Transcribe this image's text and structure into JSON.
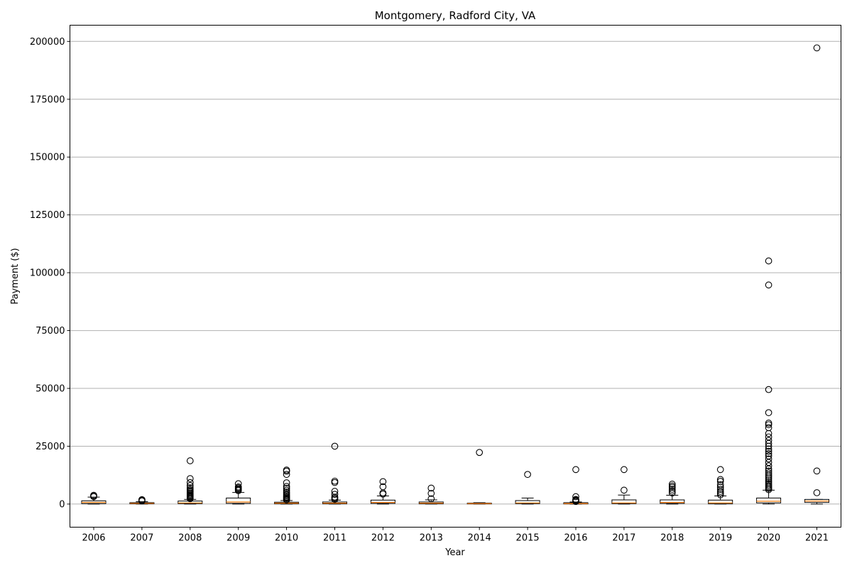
{
  "chart_data": {
    "type": "box",
    "title": "Montgomery, Radford City, VA",
    "xlabel": "Year",
    "ylabel": "Payment ($)",
    "ylim": [
      -10000,
      207000
    ],
    "yticks": [
      0,
      25000,
      50000,
      75000,
      100000,
      125000,
      150000,
      175000,
      200000
    ],
    "grid": "y",
    "colors": {
      "box": "#000000",
      "median": "#ff7f0e",
      "grid": "#b0b0b0",
      "flier": "#000000"
    },
    "categories": [
      "2006",
      "2007",
      "2008",
      "2009",
      "2010",
      "2011",
      "2012",
      "2013",
      "2014",
      "2015",
      "2016",
      "2017",
      "2018",
      "2019",
      "2020",
      "2021"
    ],
    "boxes": [
      {
        "year": "2006",
        "whisker_low": 0,
        "q1": 200,
        "median": 700,
        "q3": 1400,
        "whisker_high": 3000,
        "fliers": [
          3200,
          3600,
          3800
        ]
      },
      {
        "year": "2007",
        "whisker_low": 0,
        "q1": 100,
        "median": 300,
        "q3": 600,
        "whisker_high": 1000,
        "fliers": [
          1300,
          1600,
          1900
        ]
      },
      {
        "year": "2008",
        "whisker_low": 0,
        "q1": 200,
        "median": 500,
        "q3": 1300,
        "whisker_high": 2000,
        "fliers": [
          2300,
          2700,
          3100,
          3500,
          3900,
          4300,
          4800,
          5300,
          5800,
          6300,
          7000,
          8000,
          9300,
          11000,
          18700
        ]
      },
      {
        "year": "2009",
        "whisker_low": 0,
        "q1": 300,
        "median": 900,
        "q3": 2600,
        "whisker_high": 5000,
        "fliers": [
          5800,
          6200,
          6600,
          7000,
          7400,
          8800
        ]
      },
      {
        "year": "2010",
        "whisker_low": 0,
        "q1": 100,
        "median": 400,
        "q3": 800,
        "whisker_high": 1500,
        "fliers": [
          1800,
          2200,
          2600,
          3000,
          3500,
          4000,
          4600,
          5200,
          6000,
          6800,
          7600,
          9200,
          12800,
          14200,
          14700
        ]
      },
      {
        "year": "2011",
        "whisker_low": 0,
        "q1": 100,
        "median": 400,
        "q3": 900,
        "whisker_high": 1700,
        "fliers": [
          2000,
          2500,
          3000,
          4200,
          5500,
          9300,
          9900,
          25000
        ]
      },
      {
        "year": "2012",
        "whisker_low": 0,
        "q1": 300,
        "median": 700,
        "q3": 1700,
        "whisker_high": 3500,
        "fliers": [
          4300,
          4800,
          7500,
          9700
        ]
      },
      {
        "year": "2013",
        "whisker_low": 0,
        "q1": 100,
        "median": 400,
        "q3": 900,
        "whisker_high": 1800,
        "fliers": [
          2300,
          4600,
          6900
        ]
      },
      {
        "year": "2014",
        "whisker_low": 0,
        "q1": 50,
        "median": 200,
        "q3": 400,
        "whisker_high": 600,
        "fliers": [
          22300
        ]
      },
      {
        "year": "2015",
        "whisker_low": 0,
        "q1": 200,
        "median": 500,
        "q3": 1500,
        "whisker_high": 2600,
        "fliers": [
          12800
        ]
      },
      {
        "year": "2016",
        "whisker_low": 0,
        "q1": 50,
        "median": 200,
        "q3": 600,
        "whisker_high": 900,
        "fliers": [
          1100,
          1400,
          1700,
          2000,
          3200,
          14900
        ]
      },
      {
        "year": "2017",
        "whisker_low": 0,
        "q1": 200,
        "median": 500,
        "q3": 1800,
        "whisker_high": 3900,
        "fliers": [
          6000,
          14900
        ]
      },
      {
        "year": "2018",
        "whisker_low": 0,
        "q1": 300,
        "median": 700,
        "q3": 1800,
        "whisker_high": 3800,
        "fliers": [
          4800,
          5600,
          6400,
          7200,
          7800,
          8600
        ]
      },
      {
        "year": "2019",
        "whisker_low": 0,
        "q1": 100,
        "median": 500,
        "q3": 1700,
        "whisker_high": 3500,
        "fliers": [
          4000,
          4800,
          5500,
          6400,
          7300,
          8300,
          9800,
          10600,
          14900
        ]
      },
      {
        "year": "2020",
        "whisker_low": 0,
        "q1": 500,
        "median": 1200,
        "q3": 2600,
        "whisker_high": 6000,
        "fliers": [
          6200,
          6800,
          7400,
          8000,
          8700,
          9400,
          10100,
          10900,
          11700,
          12500,
          13400,
          14300,
          15200,
          16500,
          18000,
          19500,
          20800,
          21800,
          22800,
          23800,
          25000,
          26200,
          27500,
          29000,
          30500,
          33000,
          34300,
          35000,
          39500,
          49500,
          94700,
          105100
        ]
      },
      {
        "year": "2021",
        "whisker_low": 0,
        "q1": 700,
        "median": 1300,
        "q3": 2000,
        "whisker_high": 2000,
        "fliers": [
          4900,
          14300,
          197200
        ]
      }
    ]
  }
}
